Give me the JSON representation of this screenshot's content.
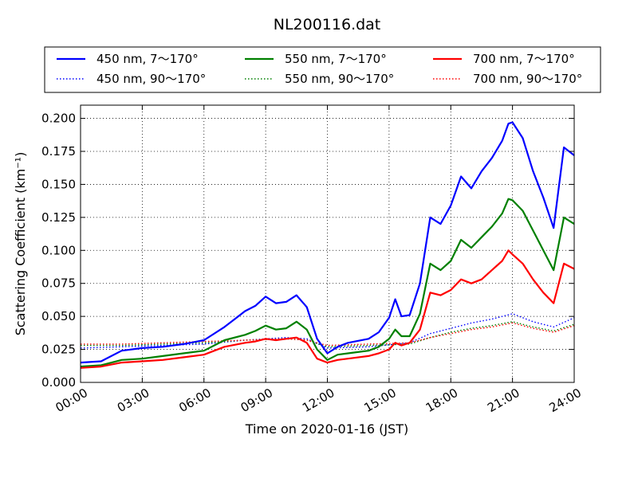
{
  "chart_data": {
    "type": "line",
    "title": "NL200116.dat",
    "xlabel": "Time on 2020-01-16 (JST)",
    "ylabel": "Scattering Coefficient (km⁻¹)",
    "xlim": [
      0,
      24
    ],
    "ylim": [
      0,
      0.21
    ],
    "grid": true,
    "legend_position": "top (above plot)",
    "x_tick_labels": [
      "00:00",
      "03:00",
      "06:00",
      "09:00",
      "12:00",
      "15:00",
      "18:00",
      "21:00",
      "24:00"
    ],
    "y_tick_labels": [
      "0.000",
      "0.025",
      "0.050",
      "0.075",
      "0.100",
      "0.125",
      "0.150",
      "0.175",
      "0.200"
    ],
    "series": [
      {
        "name": "450 nm, 7～170°",
        "color": "#0000ff",
        "style": "solid",
        "x": [
          0,
          1,
          2,
          3,
          4,
          5,
          6,
          7,
          7.5,
          8,
          8.5,
          9,
          9.5,
          10,
          10.5,
          11,
          11.5,
          12,
          12.5,
          13,
          14,
          14.5,
          15,
          15.3,
          15.6,
          16,
          16.5,
          17,
          17.5,
          18,
          18.5,
          19,
          19.5,
          20,
          20.5,
          20.8,
          21,
          21.5,
          22,
          22.5,
          23,
          23.5,
          24
        ],
        "values": [
          0.015,
          0.016,
          0.024,
          0.026,
          0.027,
          0.029,
          0.032,
          0.042,
          0.048,
          0.054,
          0.058,
          0.065,
          0.06,
          0.061,
          0.066,
          0.057,
          0.033,
          0.022,
          0.027,
          0.03,
          0.033,
          0.038,
          0.049,
          0.063,
          0.05,
          0.051,
          0.075,
          0.125,
          0.12,
          0.134,
          0.156,
          0.147,
          0.16,
          0.17,
          0.183,
          0.196,
          0.197,
          0.185,
          0.16,
          0.14,
          0.117,
          0.178,
          0.172
        ]
      },
      {
        "name": "550 nm, 7～170°",
        "color": "#008000",
        "style": "solid",
        "x": [
          0,
          1,
          2,
          3,
          4,
          5,
          6,
          7,
          8,
          8.5,
          9,
          9.5,
          10,
          10.5,
          11,
          11.5,
          12,
          12.5,
          13,
          14,
          14.5,
          15,
          15.3,
          15.6,
          16,
          16.5,
          17,
          17.5,
          18,
          18.5,
          19,
          19.5,
          20,
          20.5,
          20.8,
          21,
          21.5,
          22,
          22.5,
          23,
          23.5,
          24
        ],
        "values": [
          0.012,
          0.013,
          0.017,
          0.018,
          0.02,
          0.022,
          0.024,
          0.032,
          0.036,
          0.039,
          0.043,
          0.04,
          0.041,
          0.046,
          0.04,
          0.025,
          0.017,
          0.021,
          0.022,
          0.024,
          0.027,
          0.033,
          0.04,
          0.035,
          0.035,
          0.052,
          0.09,
          0.085,
          0.092,
          0.108,
          0.102,
          0.11,
          0.118,
          0.128,
          0.139,
          0.138,
          0.13,
          0.115,
          0.1,
          0.085,
          0.125,
          0.12
        ]
      },
      {
        "name": "700 nm, 7～170°",
        "color": "#ff0000",
        "style": "solid",
        "x": [
          0,
          1,
          2,
          3,
          4,
          5,
          6,
          7,
          8,
          8.5,
          9,
          9.5,
          10,
          10.5,
          11,
          11.5,
          12,
          12.5,
          13,
          14,
          14.5,
          15,
          15.3,
          15.6,
          16,
          16.5,
          17,
          17.5,
          18,
          18.5,
          19,
          19.5,
          20,
          20.5,
          20.8,
          21,
          21.5,
          22,
          22.5,
          23,
          23.5,
          24
        ],
        "values": [
          0.011,
          0.012,
          0.015,
          0.016,
          0.017,
          0.019,
          0.021,
          0.027,
          0.03,
          0.031,
          0.033,
          0.032,
          0.033,
          0.034,
          0.03,
          0.018,
          0.015,
          0.017,
          0.018,
          0.02,
          0.022,
          0.025,
          0.03,
          0.028,
          0.03,
          0.04,
          0.068,
          0.066,
          0.07,
          0.078,
          0.075,
          0.078,
          0.085,
          0.092,
          0.1,
          0.097,
          0.09,
          0.078,
          0.068,
          0.06,
          0.09,
          0.086
        ]
      },
      {
        "name": "450 nm, 90～170°",
        "color": "#0000ff",
        "style": "dotted",
        "x": [
          0,
          2,
          4,
          6,
          8,
          10,
          11,
          12,
          14,
          16,
          17,
          18,
          19,
          20,
          21,
          22,
          23,
          24
        ],
        "values": [
          0.026,
          0.027,
          0.028,
          0.029,
          0.032,
          0.034,
          0.033,
          0.026,
          0.027,
          0.03,
          0.037,
          0.041,
          0.045,
          0.048,
          0.052,
          0.046,
          0.042,
          0.049
        ]
      },
      {
        "name": "550 nm, 90～170°",
        "color": "#008000",
        "style": "dotted",
        "x": [
          0,
          2,
          4,
          6,
          8,
          10,
          11,
          12,
          14,
          16,
          17,
          18,
          19,
          20,
          21,
          22,
          23,
          24
        ],
        "values": [
          0.028,
          0.028,
          0.029,
          0.03,
          0.032,
          0.033,
          0.032,
          0.027,
          0.028,
          0.029,
          0.034,
          0.038,
          0.041,
          0.043,
          0.046,
          0.042,
          0.039,
          0.044
        ]
      },
      {
        "name": "700 nm, 90～170°",
        "color": "#ff0000",
        "style": "dotted",
        "x": [
          0,
          2,
          4,
          6,
          8,
          10,
          11,
          12,
          14,
          16,
          17,
          18,
          19,
          20,
          21,
          22,
          23,
          24
        ],
        "values": [
          0.029,
          0.029,
          0.03,
          0.031,
          0.032,
          0.033,
          0.032,
          0.028,
          0.029,
          0.03,
          0.034,
          0.037,
          0.04,
          0.042,
          0.045,
          0.041,
          0.038,
          0.043
        ]
      }
    ]
  }
}
